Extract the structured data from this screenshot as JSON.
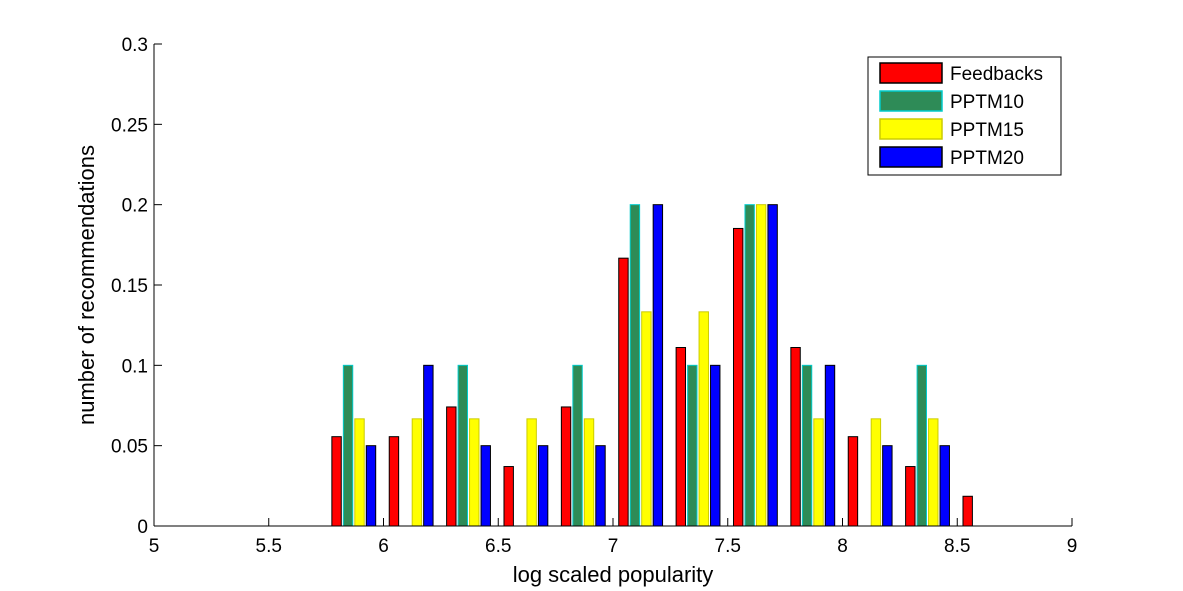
{
  "chart_data": {
    "type": "bar",
    "title": "",
    "xlabel": "log scaled popularity",
    "ylabel": "number of recommendations",
    "xlim": [
      5,
      9
    ],
    "ylim": [
      0,
      0.3
    ],
    "x_ticks": [
      "5",
      "5.5",
      "6",
      "6.5",
      "7",
      "7.5",
      "8",
      "8.5",
      "9"
    ],
    "y_ticks": [
      "0",
      "0.05",
      "0.1",
      "0.15",
      "0.2",
      "0.25",
      "0.3"
    ],
    "grid": false,
    "legend_position": "top-right",
    "bin_centers": [
      5.125,
      5.375,
      5.625,
      5.875,
      6.125,
      6.375,
      6.625,
      6.875,
      7.125,
      7.375,
      7.625,
      7.875,
      8.125,
      8.375,
      8.625,
      8.875
    ],
    "series": [
      {
        "name": "Feedbacks",
        "color": "#ff0000",
        "edge": "#000000",
        "values": [
          0,
          0,
          0,
          0.0556,
          0.0556,
          0.0741,
          0.037,
          0.0741,
          0.1667,
          0.1111,
          0.1852,
          0.1111,
          0.0556,
          0.037,
          0.0185,
          0
        ]
      },
      {
        "name": "PPTM10",
        "color": "#2e8b57",
        "edge": "#00cccc",
        "values": [
          0,
          0,
          0,
          0.1,
          0,
          0.1,
          0,
          0.1,
          0.2,
          0.1,
          0.2,
          0.1,
          0,
          0.1,
          0,
          0
        ]
      },
      {
        "name": "PPTM15",
        "color": "#ffff00",
        "edge": "#cccc00",
        "values": [
          0,
          0,
          0,
          0.0667,
          0.0667,
          0.0667,
          0.0667,
          0.0667,
          0.1333,
          0.1333,
          0.2,
          0.0667,
          0.0667,
          0.0667,
          0,
          0
        ]
      },
      {
        "name": "PPTM20",
        "color": "#0000ff",
        "edge": "#000000",
        "values": [
          0,
          0,
          0,
          0.05,
          0.1,
          0.05,
          0.05,
          0.05,
          0.2,
          0.1,
          0.2,
          0.1,
          0.05,
          0.05,
          0,
          0
        ]
      }
    ]
  }
}
